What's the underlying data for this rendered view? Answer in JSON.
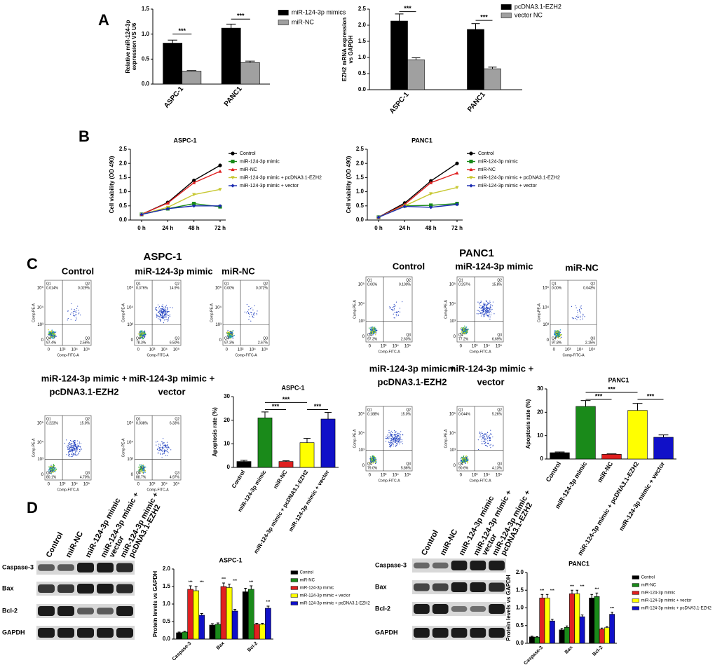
{
  "panels": [
    "A",
    "B",
    "C",
    "D"
  ],
  "groups": [
    "ASPC-1",
    "PANC1"
  ],
  "flow_axes": {
    "xlabel": "Comp-FITC-A",
    "ylabel": "Comp-PE-A",
    "ticks": [
      "0",
      "10³",
      "10⁴",
      "10⁵"
    ]
  },
  "blot": {
    "columns": [
      [
        "Control"
      ],
      [
        "miR-NC"
      ],
      [
        "miR-124-3p mimic"
      ],
      [
        "miR-124-3p mimic +",
        "vector"
      ],
      [
        "miR-124-3p mimic +",
        "pcDNA3.1-EZH2"
      ]
    ],
    "rows": [
      "Caspase-3",
      "Bax",
      "Bcl-2",
      "GAPDH"
    ]
  },
  "chart_data": [
    {
      "type": "bar",
      "ylabel": [
        "Relative miR-124-3p",
        "expression VS U6"
      ],
      "categories": [
        "ASPC-1",
        "PANC1"
      ],
      "series": [
        {
          "name": "miR-124-3p mimics",
          "color": "#000000",
          "values": [
            0.82,
            1.12
          ],
          "errors": [
            0.06,
            0.08
          ]
        },
        {
          "name": "miR-NC",
          "color": "#a0a0a0",
          "values": [
            0.26,
            0.43
          ],
          "errors": [
            0.01,
            0.03
          ]
        }
      ],
      "ylim": [
        0,
        1.5
      ],
      "yticks": [
        {
          "value": 0,
          "label": "0.0"
        },
        0.5,
        {
          "value": 1,
          "label": "1.0"
        },
        1.5
      ],
      "annotations": [
        "***",
        "***"
      ]
    },
    {
      "type": "bar",
      "ylabel": [
        "EZH2 mRNA expression",
        "vs GAPDH"
      ],
      "categories": [
        "ASPC-1",
        "PANC1"
      ],
      "series": [
        {
          "name": "pcDNA3.1-EZH2",
          "color": "#000000",
          "values": [
            2.13,
            1.87
          ],
          "errors": [
            0.22,
            0.18
          ]
        },
        {
          "name": "vector NC",
          "color": "#a0a0a0",
          "values": [
            0.93,
            0.65
          ],
          "errors": [
            0.06,
            0.05
          ]
        }
      ],
      "ylim": [
        0,
        2.5
      ],
      "yticks": [
        {
          "value": 0,
          "label": "0.0"
        },
        0.5,
        {
          "value": 1,
          "label": "1.0"
        },
        1.5,
        {
          "value": 2,
          "label": "2.0"
        },
        2.5
      ],
      "annotations": [
        "***",
        "***"
      ]
    },
    {
      "type": "line",
      "title": "ASPC-1",
      "ylabel": "Cell viability (OD 490)",
      "categories": [
        "0 h",
        "24 h",
        "48 h",
        "72 h"
      ],
      "series": [
        {
          "name": "Control",
          "color": "#000000",
          "values": [
            0.2,
            0.62,
            1.4,
            1.93
          ]
        },
        {
          "name": "miR-124-3p mimic",
          "color": "#1a8a1a",
          "values": [
            0.2,
            0.4,
            0.58,
            0.47
          ]
        },
        {
          "name": "miR-NC",
          "color": "#e02020",
          "values": [
            0.2,
            0.6,
            1.32,
            1.72
          ]
        },
        {
          "name": "miR-124-3p mimic + pcDNA3.1-EZH2",
          "color": "#c8c832",
          "values": [
            0.2,
            0.45,
            0.9,
            1.08
          ]
        },
        {
          "name": "miR-124-3p mimic + vector",
          "color": "#1a2ab0",
          "values": [
            0.2,
            0.4,
            0.5,
            0.5
          ]
        }
      ],
      "ylim": [
        0,
        2.5
      ],
      "yticks": [
        {
          "value": 0,
          "label": "0.0"
        },
        0.5,
        {
          "value": 1,
          "label": "1.0"
        },
        1.5,
        {
          "value": 2,
          "label": "2.0"
        },
        2.5
      ]
    },
    {
      "type": "line",
      "title": "PANC1",
      "ylabel": "Cell viability (OD 490)",
      "categories": [
        "0 h",
        "24 h",
        "48 h",
        "72 h"
      ],
      "series": [
        {
          "name": "Control",
          "color": "#000000",
          "values": [
            0.1,
            0.6,
            1.38,
            2.0
          ]
        },
        {
          "name": "miR-124-3p mimic",
          "color": "#1a8a1a",
          "values": [
            0.1,
            0.5,
            0.52,
            0.58
          ]
        },
        {
          "name": "miR-NC",
          "color": "#e02020",
          "values": [
            0.1,
            0.55,
            1.32,
            1.66
          ]
        },
        {
          "name": "miR-124-3p mimic + pcDNA3.1-EZH2",
          "color": "#c8c832",
          "values": [
            0.1,
            0.5,
            0.93,
            1.15
          ]
        },
        {
          "name": "miR-124-3p mimic + vector",
          "color": "#1a2ab0",
          "values": [
            0.1,
            0.48,
            0.45,
            0.55
          ]
        }
      ],
      "ylim": [
        0,
        2.5
      ],
      "yticks": [
        {
          "value": 0,
          "label": "0.0"
        },
        0.5,
        {
          "value": 1,
          "label": "1.0"
        },
        1.5,
        {
          "value": 2,
          "label": "2.0"
        },
        2.5
      ]
    },
    {
      "type": "flow",
      "title": [
        "Control"
      ],
      "quadrants": [
        [
          "Q1",
          "0.014%"
        ],
        [
          "Q2",
          "0.029%"
        ],
        [
          "Q3",
          "2.56%"
        ],
        [
          "Q4",
          "97.4%"
        ]
      ]
    },
    {
      "type": "flow",
      "title": [
        "miR-124-3p mimic"
      ],
      "quadrants": [
        [
          "Q1",
          "0.376%"
        ],
        [
          "Q2",
          "14.9%"
        ],
        [
          "Q3",
          "6.50%"
        ],
        [
          "Q4",
          "78.3%"
        ]
      ]
    },
    {
      "type": "flow",
      "title": [
        "miR-NC"
      ],
      "quadrants": [
        [
          "Q1",
          "0.00%"
        ],
        [
          "Q2",
          "0.072%"
        ],
        [
          "Q3",
          "2.67%"
        ],
        [
          "Q4",
          "97.3%"
        ]
      ]
    },
    {
      "type": "flow",
      "title": [
        "miR-124-3p mimic +",
        "pcDNA3.1-EZH2"
      ],
      "quadrants": [
        [
          "Q1",
          "0.223%"
        ],
        [
          "Q2",
          "15.0%"
        ],
        [
          "Q3",
          "4.70%"
        ],
        [
          "Q4",
          "80.1%"
        ]
      ]
    },
    {
      "type": "flow",
      "title": [
        "miR-124-3p mimic +",
        "vector"
      ],
      "quadrants": [
        [
          "Q1",
          "0.038%"
        ],
        [
          "Q2",
          "6.33%"
        ],
        [
          "Q3",
          "4.97%"
        ],
        [
          "Q4",
          "88.7%"
        ]
      ]
    },
    {
      "type": "bar",
      "title": "ASPC-1",
      "ylabel": "Apoptosis rate (%)",
      "categories": [
        "Control",
        "miR-124-3p mimic",
        "miR-NC",
        "miR-124-3p mimic + pcDNA3.1-EZH2",
        "miR-124-3p mimic + vector"
      ],
      "values": [
        2.5,
        21,
        2.5,
        10.5,
        20.5
      ],
      "errors": [
        0.5,
        2.5,
        0.3,
        1.8,
        2.8
      ],
      "colors": [
        "#000000",
        "#1a8a1a",
        "#e02020",
        "#ffff00",
        "#1010c8"
      ],
      "ylim": [
        0,
        30
      ],
      "yticks": [
        0,
        10,
        20,
        30
      ],
      "annotations": [
        "***",
        "***",
        "***"
      ]
    },
    {
      "type": "flow",
      "title": [
        "Control"
      ],
      "quadrants": [
        [
          "Q1",
          "0.00%"
        ],
        [
          "Q2",
          "0.100%"
        ],
        [
          "Q3",
          "2.63%"
        ],
        [
          "Q4",
          "97.3%"
        ]
      ]
    },
    {
      "type": "flow",
      "title": [
        "miR-124-3p mimic"
      ],
      "quadrants": [
        [
          "Q1",
          "0.297%"
        ],
        [
          "Q2",
          "15.8%"
        ],
        [
          "Q3",
          "6.69%"
        ],
        [
          "Q4",
          "77.2%"
        ]
      ]
    },
    {
      "type": "flow",
      "title": [
        "miR-NC"
      ],
      "quadrants": [
        [
          "Q1",
          "0.00%"
        ],
        [
          "Q2",
          "0.043%"
        ],
        [
          "Q3",
          "2.15%"
        ],
        [
          "Q4",
          "97.8%"
        ]
      ]
    },
    {
      "type": "flow",
      "title": [
        "miR-124-3p mimic +",
        "pcDNA3.1-EZH2"
      ],
      "quadrants": [
        [
          "Q1",
          "0.188%"
        ],
        [
          "Q2",
          "15.0%"
        ],
        [
          "Q3",
          "5.86%"
        ],
        [
          "Q4",
          "79.0%"
        ]
      ]
    },
    {
      "type": "flow",
      "title": [
        "miR-124-3p mimic +",
        "vector"
      ],
      "quadrants": [
        [
          "Q1",
          "0.044%"
        ],
        [
          "Q2",
          "5.26%"
        ],
        [
          "Q3",
          "4.13%"
        ],
        [
          "Q4",
          "90.6%"
        ]
      ]
    },
    {
      "type": "bar",
      "title": "PANC1",
      "ylabel": "Apoptosis rate (%)",
      "categories": [
        "Control",
        "miR-124-3p mimic",
        "miR-NC",
        "miR-124-3p mimic + pcDNA3.1-EZH2",
        "miR-124-3p mimic + vector"
      ],
      "values": [
        2.7,
        22.5,
        2,
        20.8,
        9.3
      ],
      "errors": [
        0.3,
        2.5,
        0.2,
        3,
        1
      ],
      "colors": [
        "#000000",
        "#1a8a1a",
        "#e02020",
        "#ffff00",
        "#1010c8"
      ],
      "ylim": [
        0,
        30
      ],
      "yticks": [
        0,
        10,
        20,
        30
      ],
      "annotations": [
        "***",
        "***",
        "***"
      ]
    },
    {
      "type": "bar",
      "title": "ASPC-1",
      "ylabel": "Protein levels vs GAPDH",
      "categories": [
        "Caspase-3",
        "Bax",
        "Bcl-2"
      ],
      "series": [
        {
          "name": "Control",
          "color": "#000000",
          "values": [
            0.18,
            0.4,
            1.35
          ],
          "errors": [
            0.02,
            0.04,
            0.1
          ]
        },
        {
          "name": "miR-NC",
          "color": "#1a8a1a",
          "values": [
            0.2,
            0.42,
            1.42
          ],
          "errors": [
            0.02,
            0.04,
            0.1
          ]
        },
        {
          "name": "miR-124-3p mimic",
          "color": "#e02020",
          "values": [
            1.42,
            1.5,
            0.42
          ],
          "errors": [
            0.1,
            0.1,
            0.03
          ]
        },
        {
          "name": "miR-124-3p mimic + vector",
          "color": "#ffff00",
          "values": [
            1.38,
            1.47,
            0.42
          ],
          "errors": [
            0.12,
            0.1,
            0.03
          ]
        },
        {
          "name": "miR-124-3p mimic + pcDNA3.1-EZH2",
          "color": "#1010c8",
          "values": [
            0.68,
            0.8,
            0.88
          ],
          "errors": [
            0.05,
            0.05,
            0.06
          ]
        }
      ],
      "ylim": [
        0,
        2
      ],
      "yticks": [
        {
          "value": 0,
          "label": "0.0"
        },
        0.5,
        {
          "value": 1,
          "label": "1.0"
        },
        1.5,
        {
          "value": 2,
          "label": "2.0"
        }
      ],
      "annotations": [
        "***",
        "***",
        "***",
        "***",
        "***",
        "***"
      ]
    },
    {
      "type": "bar",
      "title": "PANC1",
      "ylabel": "Protein levels vs GAPDH",
      "categories": [
        "Caspase-3",
        "Bax",
        "Bcl-2"
      ],
      "series": [
        {
          "name": "Control",
          "color": "#000000",
          "values": [
            0.18,
            0.38,
            1.28
          ],
          "errors": [
            0.02,
            0.04,
            0.1
          ]
        },
        {
          "name": "miR-NC",
          "color": "#1a8a1a",
          "values": [
            0.17,
            0.45,
            1.32
          ],
          "errors": [
            0.02,
            0.04,
            0.1
          ]
        },
        {
          "name": "miR-124-3p mimic",
          "color": "#e02020",
          "values": [
            1.28,
            1.4,
            0.4
          ],
          "errors": [
            0.1,
            0.1,
            0.03
          ]
        },
        {
          "name": "miR-124-3p mimic + vector",
          "color": "#ffff00",
          "values": [
            1.28,
            1.4,
            0.44
          ],
          "errors": [
            0.1,
            0.1,
            0.03
          ]
        },
        {
          "name": "miR-124-3p mimic + pcDNA3.1-EZH2",
          "color": "#1010c8",
          "values": [
            0.63,
            0.75,
            0.82
          ],
          "errors": [
            0.05,
            0.05,
            0.06
          ]
        }
      ],
      "ylim": [
        0,
        2
      ],
      "yticks": [
        {
          "value": 0,
          "label": "0.0"
        },
        0.5,
        {
          "value": 1,
          "label": "1.0"
        },
        1.5,
        {
          "value": 2,
          "label": "2.0"
        }
      ],
      "annotations": [
        "***",
        "***",
        "***",
        "***",
        "***",
        "***"
      ]
    }
  ]
}
